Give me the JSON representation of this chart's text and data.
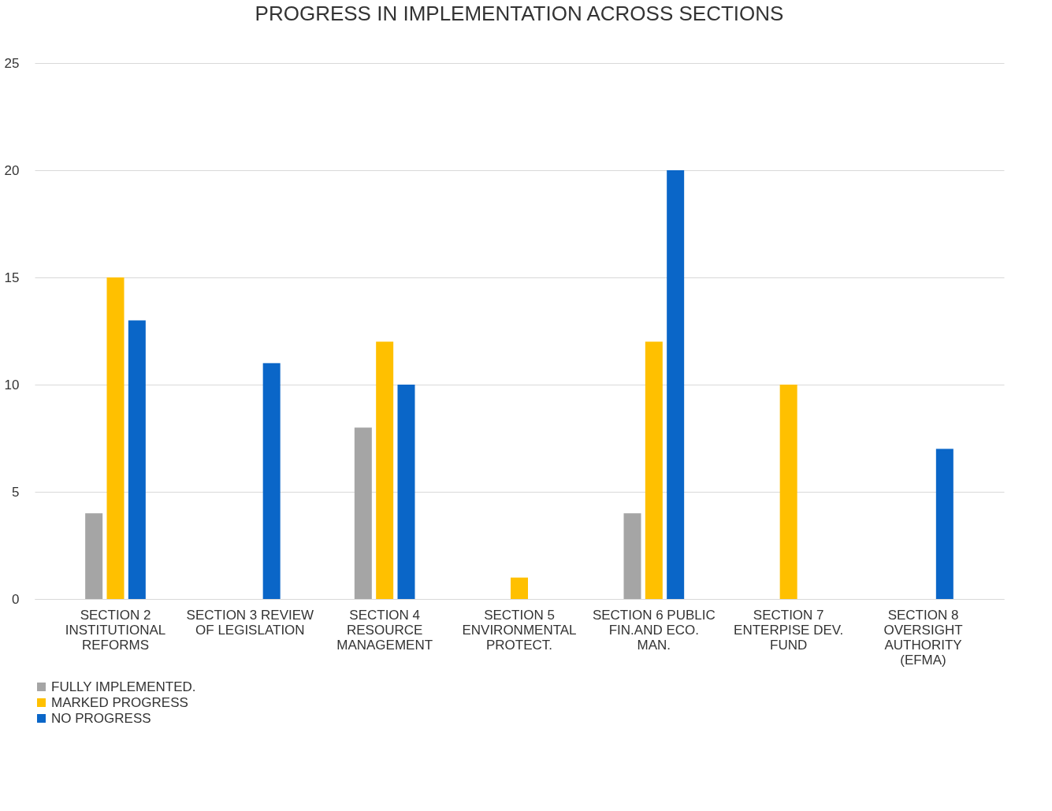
{
  "chart_data": {
    "type": "bar",
    "title": "PROGRESS IN IMPLEMENTATION ACROSS SECTIONS",
    "categories": [
      "SECTION 2\nINSTITUTIONAL\nREFORMS",
      "SECTION 3 REVIEW\nOF  LEGISLATION",
      "SECTION 4\nRESOURCE\nMANAGEMENT",
      "SECTION 5\nENVIRONMENTAL\nPROTECT.",
      "SECTION 6 PUBLIC\nFIN.AND ECO.\nMAN.",
      "SECTION 7\nENTERPISE DEV.\nFUND",
      "SECTION 8\nOVERSIGHT\nAUTHORITY\n(EFMA)"
    ],
    "series": [
      {
        "name": "FULLY IMPLEMENTED.",
        "color": "#a5a5a5",
        "values": [
          4,
          0,
          8,
          0,
          4,
          0,
          0
        ]
      },
      {
        "name": "MARKED PROGRESS",
        "color": "#ffc000",
        "values": [
          15,
          0,
          12,
          1,
          12,
          10,
          0
        ]
      },
      {
        "name": "NO PROGRESS",
        "color": "#0a66c8",
        "values": [
          13,
          11,
          10,
          0,
          20,
          0,
          7
        ]
      }
    ],
    "ylim": [
      0,
      25
    ],
    "yticks": [
      0,
      5,
      10,
      15,
      20,
      25
    ],
    "grid": "y",
    "legend": "bottom"
  }
}
